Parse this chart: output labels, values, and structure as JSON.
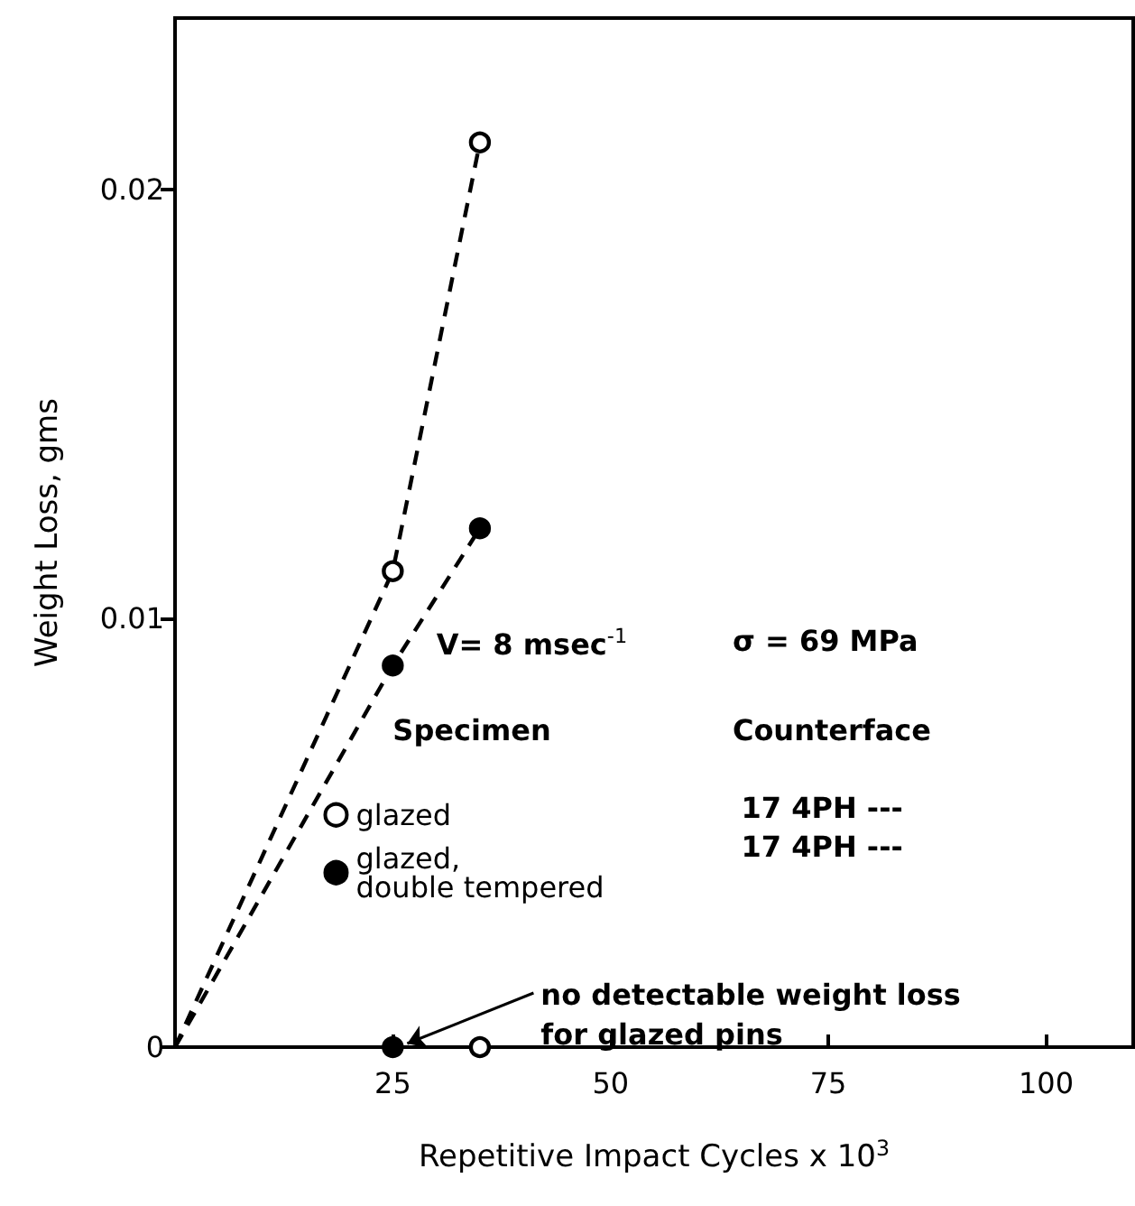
{
  "chart_data": {
    "type": "scatter",
    "xlabel": "Repetitive Impact Cycles x 10$^{3}$",
    "ylabel": "Weight Loss, gms",
    "legend_title": "Specimen",
    "xlim": [
      0,
      110
    ],
    "ylim": [
      0,
      0.024
    ],
    "xticks": [
      25,
      50,
      75,
      100
    ],
    "yticks": [
      0,
      0.01,
      0.02
    ],
    "grid": false,
    "legend": "center",
    "series": [
      {
        "type": "line",
        "color": "#000000",
        "marker": "none",
        "line_style": "dashed",
        "x": [
          0,
          25,
          35
        ],
        "values": [
          0,
          0.0111,
          0.0211
        ]
      },
      {
        "type": "line",
        "color": "#000000",
        "marker": "none",
        "line_style": "dashed",
        "x": [
          0,
          25,
          35
        ],
        "values": [
          0,
          0.0089,
          0.0121
        ]
      },
      {
        "name": "glazed",
        "color": "#ffffff",
        "marker": "circle",
        "x": [
          25,
          35
        ],
        "values": [
          0.0111,
          0.0211
        ]
      },
      {
        "name": "glazed,\ndouble tempered",
        "color": "#000000",
        "marker": "circle",
        "x": [
          25,
          35
        ],
        "values": [
          0.0089,
          0.0121
        ]
      },
      {
        "color": "#ffffff",
        "marker": "circle",
        "x": [
          35
        ],
        "values": [
          0
        ]
      },
      {
        "color": "#000000",
        "marker": "circle",
        "x": [
          25
        ],
        "values": [
          0
        ]
      }
    ],
    "annotations": [
      "V= 8 msec$^{-1}$",
      "σ = 69 MPa",
      "Counterface",
      "17 4PH ---",
      "17 4PH ---",
      {
        "text": "no detectable weight loss\nfor glazed pins",
        "x": 25,
        "y": 0
      }
    ]
  }
}
